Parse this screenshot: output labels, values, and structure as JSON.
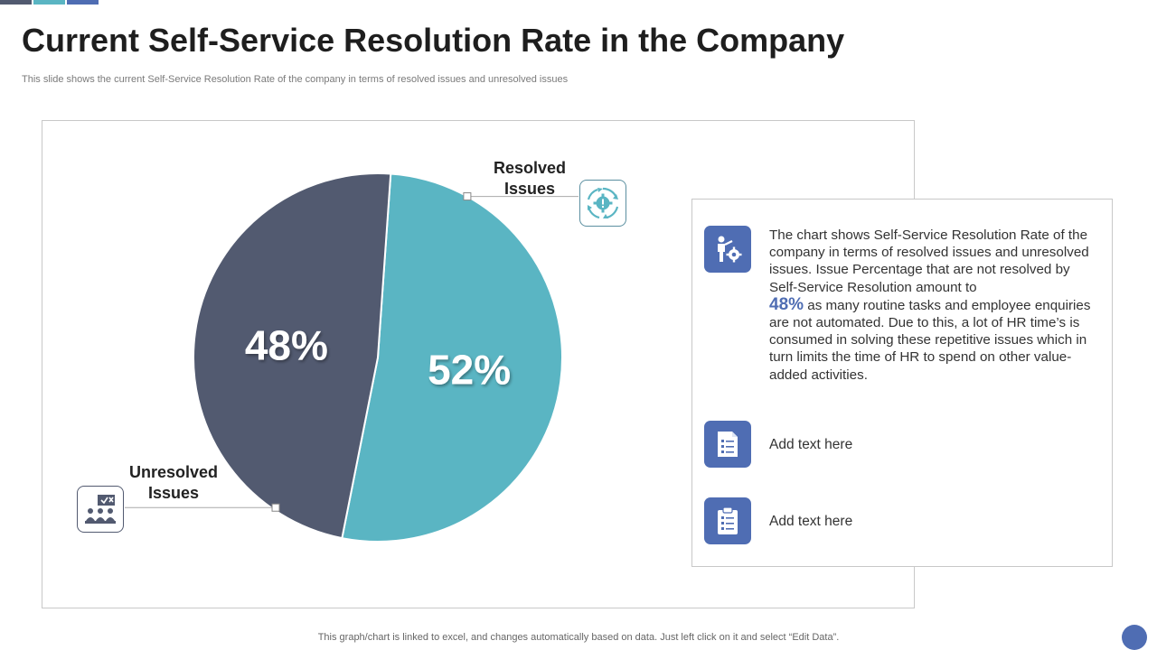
{
  "title": "Current Self-Service Resolution Rate in the Company",
  "subtitle": "This slide shows the current Self-Service Resolution Rate of the company in terms of resolved issues and unresolved issues",
  "colors": {
    "unresolved": "#525a70",
    "resolved": "#5ab5c3",
    "accent": "#4f6db3",
    "top_bar_1": "#525a70",
    "top_bar_2": "#5ab5c3",
    "top_bar_3": "#4f6db3"
  },
  "chart_data": {
    "type": "pie",
    "categories": [
      "Resolved Issues",
      "Unresolved Issues"
    ],
    "values": [
      52,
      48
    ],
    "labels": [
      "52%",
      "48%"
    ],
    "legend": "callout labels beside slices"
  },
  "legend": {
    "resolved_line1": "Resolved",
    "resolved_line2": "Issues",
    "unresolved_line1": "Unresolved",
    "unresolved_line2": "Issues"
  },
  "icons": {
    "resolved": "gear-cycle-icon",
    "unresolved": "team-presentation-icon",
    "info": "person-gear-icon",
    "list": "document-list-icon",
    "clipboard": "clipboard-checklist-icon"
  },
  "info": {
    "text_before": "The chart shows Self-Service Resolution Rate of the company in terms of resolved issues and unresolved issues. Issue Percentage that are not resolved by Self-Service Resolution amount to",
    "highlight": "48%",
    "text_after": "as many routine tasks and employee enquiries are not automated. Due to this, a lot of HR time’s is consumed in solving these repetitive issues which in turn limits the time of HR to spend on other value-added activities.",
    "add_text_1": "Add text here",
    "add_text_2": "Add text here"
  },
  "footer": {
    "note": "This graph/chart is linked to excel, and changes automatically based on data. Just left click on it and select “Edit Data”."
  }
}
